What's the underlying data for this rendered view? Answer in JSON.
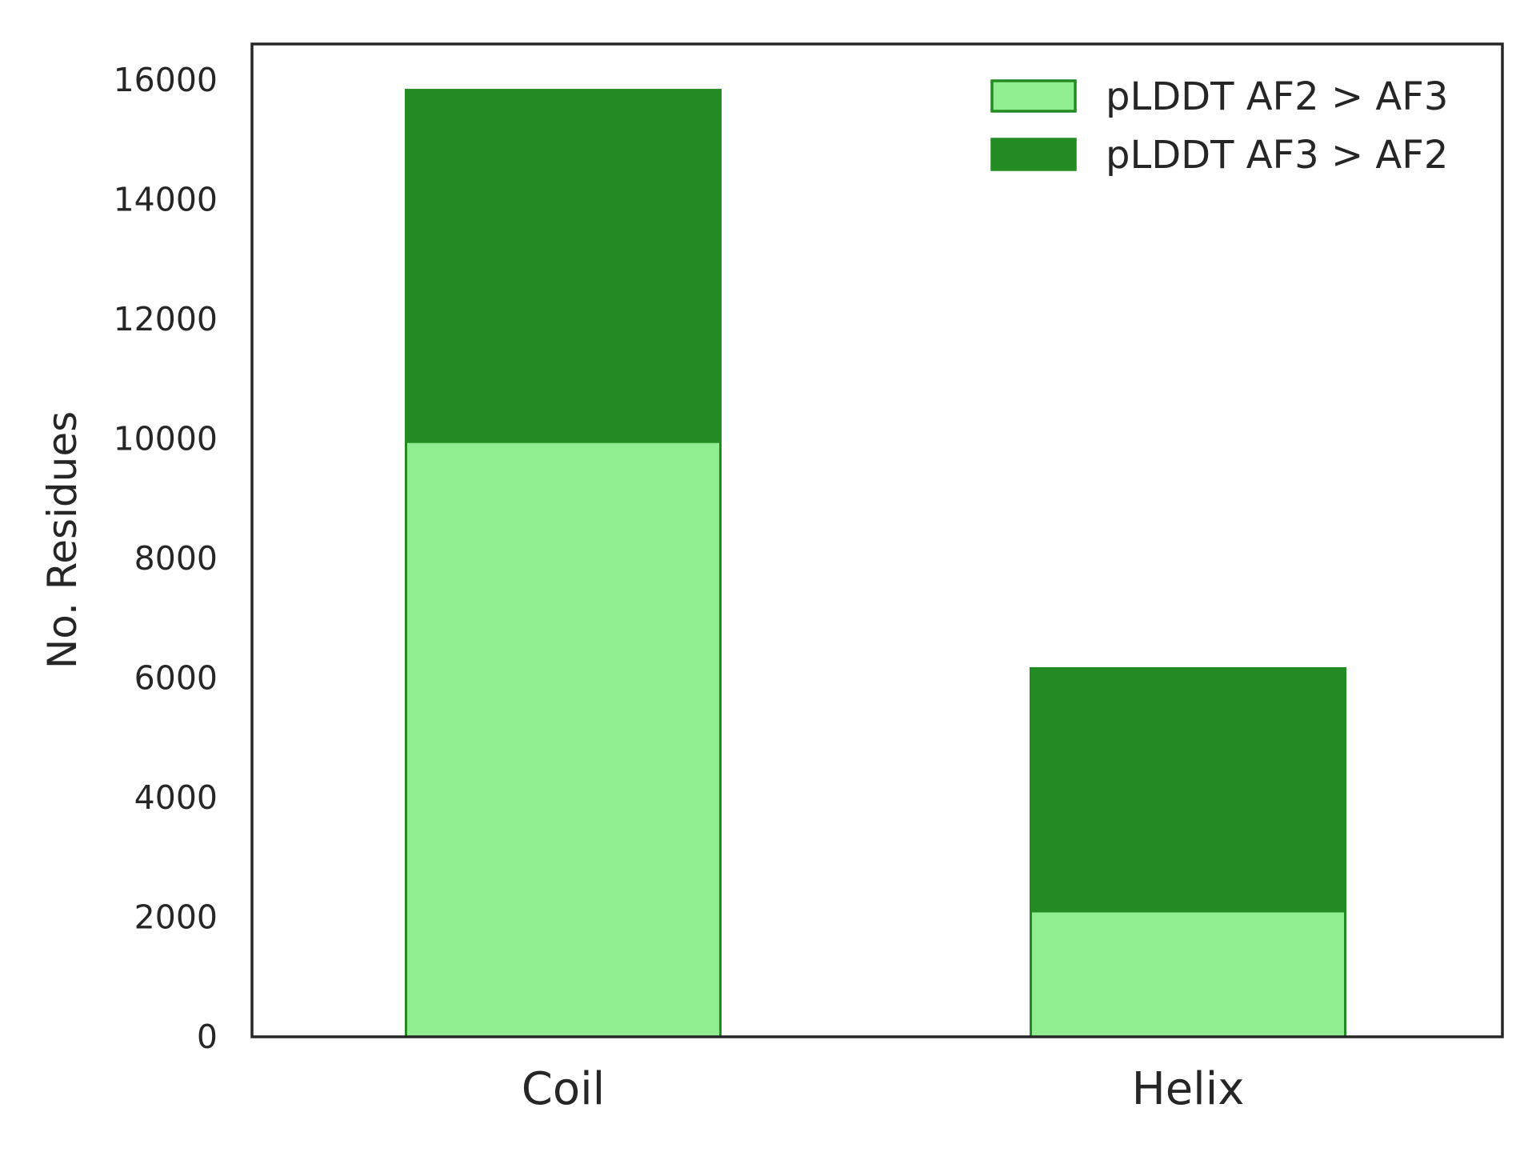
{
  "chart_data": {
    "type": "bar",
    "stacked": true,
    "title": "",
    "xlabel": "",
    "ylabel": "No. Residues",
    "categories": [
      "Coil",
      "Helix"
    ],
    "ylim": [
      0,
      16600
    ],
    "yticks": [
      0,
      2000,
      4000,
      6000,
      8000,
      10000,
      12000,
      14000,
      16000
    ],
    "grid": false,
    "legend_position": "top-right",
    "series": [
      {
        "name": "pLDDT AF2 > AF3",
        "values": [
          9950,
          2100
        ],
        "color": "#90ee90",
        "edge_color": "#228b22"
      },
      {
        "name": "pLDDT AF3 > AF2",
        "values": [
          5880,
          4060
        ],
        "color": "#228b22",
        "edge_color": "#228b22"
      }
    ]
  }
}
